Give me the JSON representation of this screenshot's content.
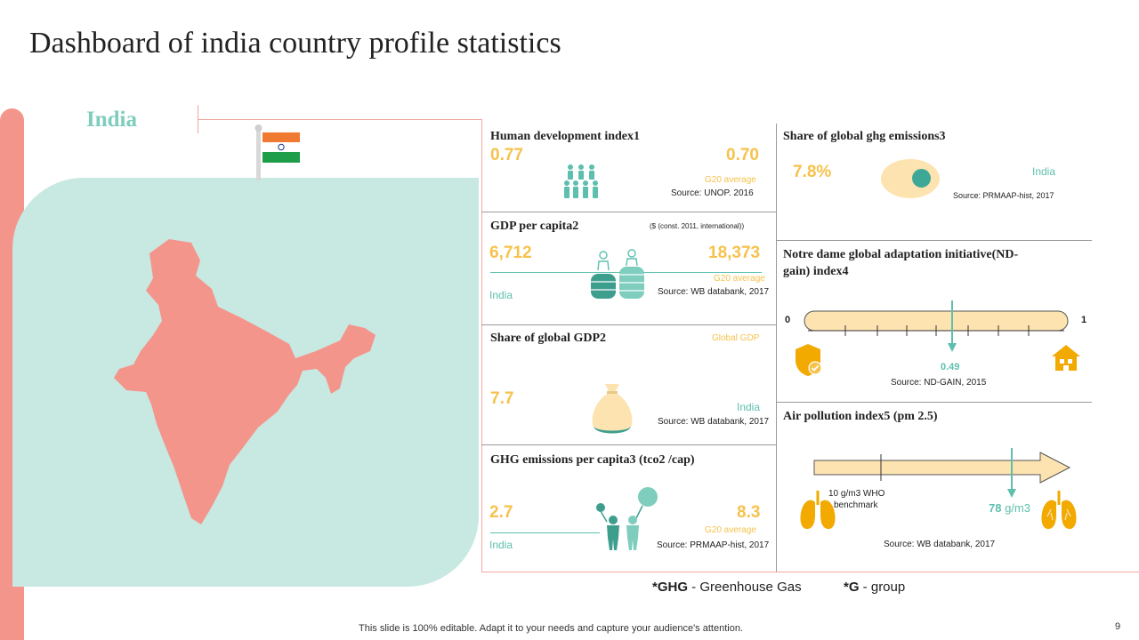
{
  "title": "Dashboard of india country profile statistics",
  "country": "India",
  "colors": {
    "coral": "#f4958c",
    "mint": "#c8e8e2",
    "teal": "#5dbfae",
    "yellow": "#f6c24c",
    "peach": "#fde3b0",
    "orange": "#f2a900"
  },
  "hdi": {
    "heading": "Human development index1",
    "value": "0.77",
    "g20_value": "0.70",
    "g20_label": "G20 average",
    "source": "Source: UNOP.  2016"
  },
  "gdp_per_capita": {
    "heading": "GDP per capita2",
    "unit": "($ (const. 2011, international))",
    "value": "6,712",
    "g20_value": "18,373",
    "g20_label": "G20 average",
    "country_label": "India",
    "source": "Source: WB databank, 2017"
  },
  "share_gdp": {
    "heading": "Share of global GDP2",
    "global_label": "Global GDP",
    "value": "7.7",
    "country_label": "India",
    "source": "Source: WB databank, 2017"
  },
  "ghg_capita": {
    "heading": "GHG emissions per capita3 (tco2 /cap)",
    "value": "2.7",
    "g20_value": "8.3",
    "g20_label": "G20 average",
    "country_label": "India",
    "source": "Source: PRMAAP-hist, 2017"
  },
  "share_ghg": {
    "heading": "Share of global ghg emissions3",
    "value": "7.8%",
    "country_label": "India",
    "source": "Source: PRMAAP-hist, 2017"
  },
  "ndgain": {
    "heading_line1": "Notre dame global adaptation initiative(ND-",
    "heading_line2": "gain) index4",
    "min_label": "0",
    "max_label": "1",
    "value": 0.49,
    "value_label": "0.49",
    "source": "Source: ND-GAIN,  2015"
  },
  "air": {
    "heading": "Air pollution index5 (pm 2.5)",
    "who_line1": "10 g/m3 WHO",
    "who_line2": "benchmark",
    "value_num": "78",
    "value_unit": " g/m3",
    "source": "Source: WB databank, 2017"
  },
  "legend": {
    "ghg_abbr": "*GHG",
    "ghg_text": " - Greenhouse  Gas",
    "g_abbr": "*G",
    "g_text": " - group"
  },
  "footer": {
    "note": "This slide is 100% editable. Adapt it to your needs and capture your audience's attention.",
    "page": "9"
  }
}
